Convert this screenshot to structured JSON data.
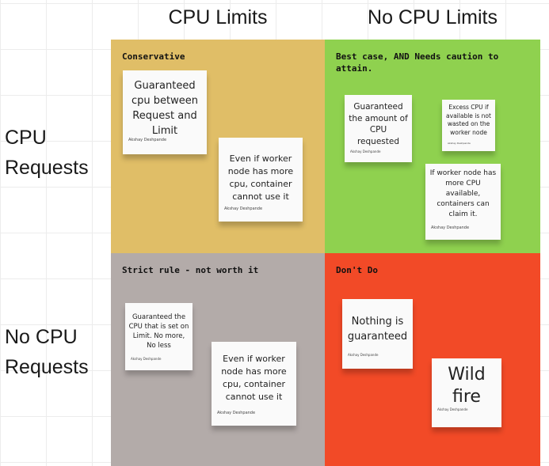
{
  "columns": [
    "CPU Limits",
    "No CPU Limits"
  ],
  "rows": [
    "CPU Requests",
    "No CPU Requests"
  ],
  "colors": {
    "conservative": "#e0be67",
    "best_case": "#8fd14f",
    "strict": "#b3aba9",
    "dont": "#f24a27"
  },
  "quadrants": [
    {
      "label": "Conservative",
      "notes": [
        {
          "text": "Guaranteed cpu between Request and Limit",
          "author": "Akshay Deshpande"
        },
        {
          "text": "Even if worker node has more cpu, container cannot use it",
          "author": "Akshay Deshpande"
        }
      ]
    },
    {
      "label": "Best case, AND Needs caution to attain.",
      "notes": [
        {
          "text": "Guaranteed the amount of CPU requested",
          "author": "Akshay Deshpande"
        },
        {
          "text": "Excess CPU if available is not wasted on the worker node",
          "author": "Akshay Deshpande"
        },
        {
          "text": "If worker node has more CPU available, containers can claim it.",
          "author": "Akshay Deshpande"
        }
      ]
    },
    {
      "label": "Strict rule - not worth it",
      "notes": [
        {
          "text": "Guaranteed the CPU that is set on Limit. No more, No less",
          "author": "Akshay Deshpande"
        },
        {
          "text": "Even if worker node has more cpu, container cannot use it",
          "author": "Akshay Deshpande"
        }
      ]
    },
    {
      "label": "Don't Do",
      "notes": [
        {
          "text": "Nothing is guaranteed",
          "author": "Akshay Deshpande"
        },
        {
          "text": "Wild fire",
          "author": "Akshay Deshpande"
        }
      ]
    }
  ]
}
